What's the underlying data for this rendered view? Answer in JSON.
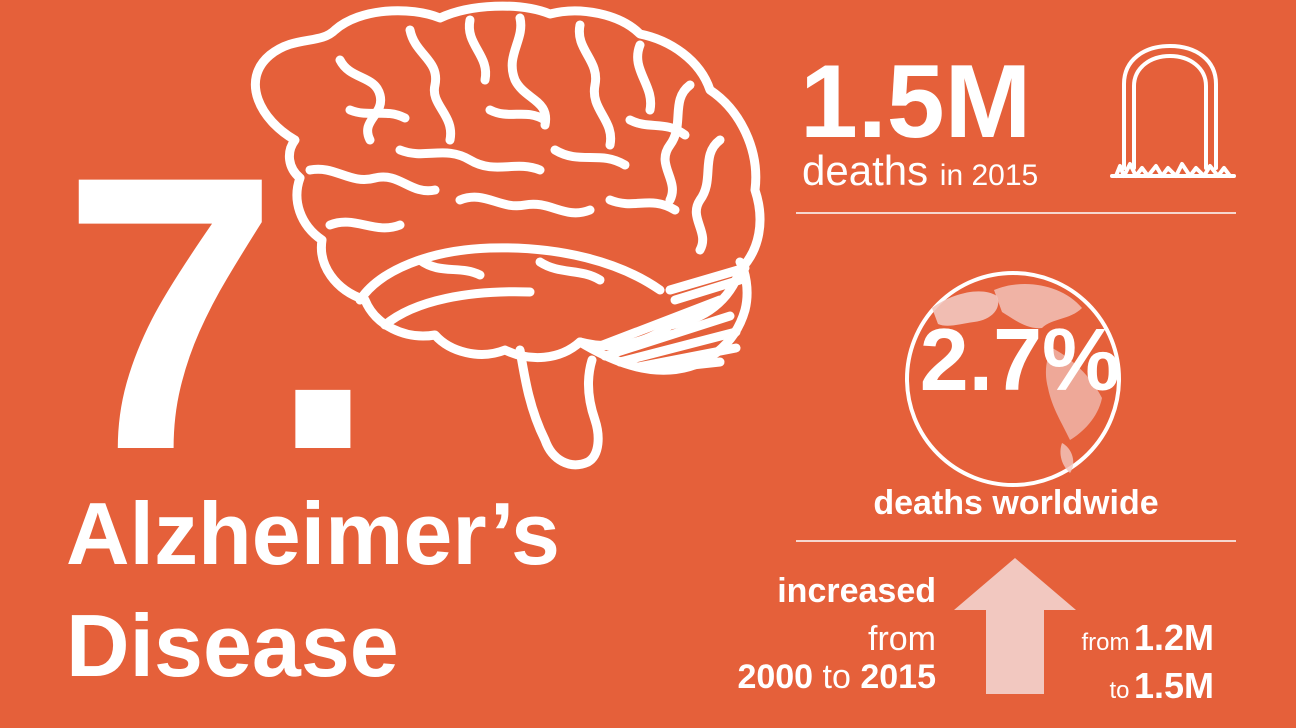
{
  "rank": "7.",
  "title": {
    "line1": "Alzheimer’s",
    "line2": "Disease"
  },
  "deaths": {
    "count": "1.5M",
    "label": "deaths",
    "period": "in 2015"
  },
  "share": {
    "percent": "2.7%",
    "label": "deaths worldwide"
  },
  "trend": {
    "line1": "increased",
    "line2": "from",
    "year_from": "2000",
    "connector": "to",
    "year_to": "2015",
    "from_label": "from",
    "from_value": "1.2M",
    "to_label": "to",
    "to_value": "1.5M"
  },
  "colors": {
    "background": "#E5603A",
    "foreground": "#FFFFFF",
    "arrow": "#F2C8C0",
    "globe_land": "#F2C8C0"
  },
  "icons": [
    "brain-icon",
    "tombstone-icon",
    "globe-icon",
    "up-arrow-icon"
  ]
}
